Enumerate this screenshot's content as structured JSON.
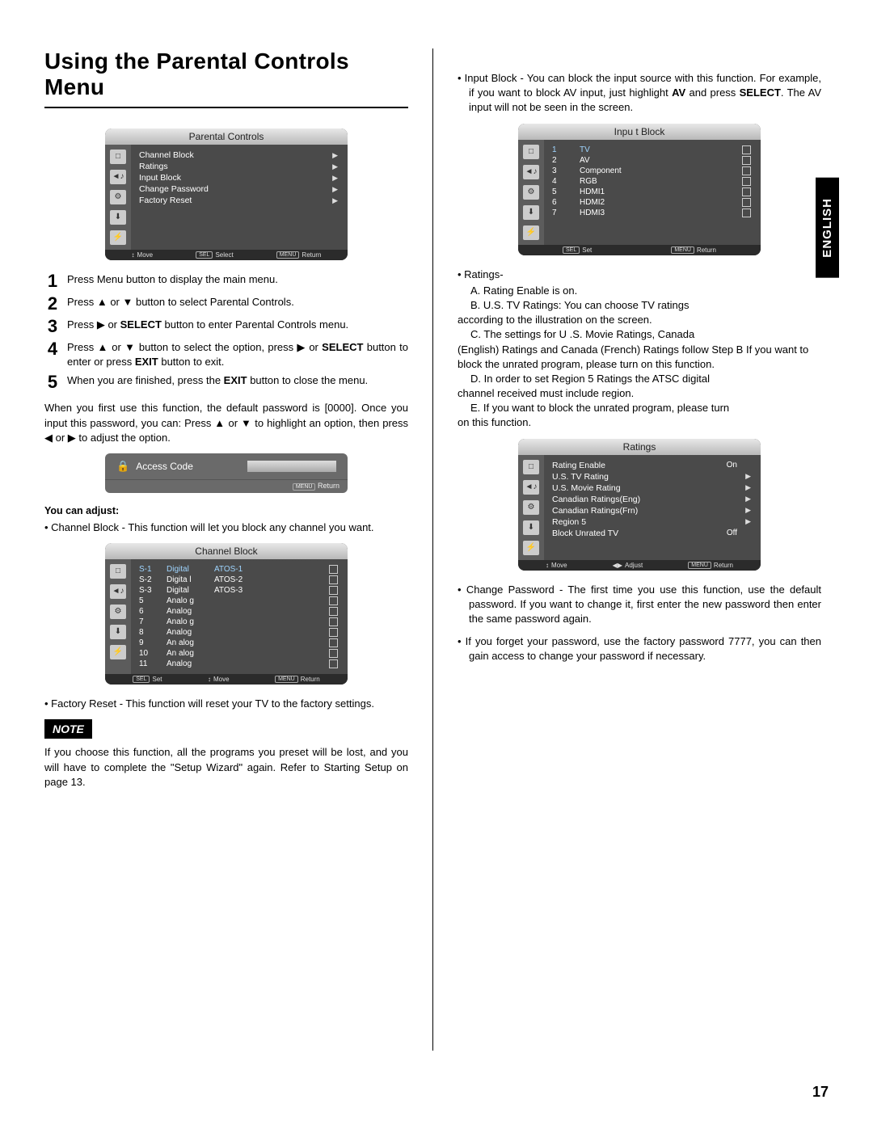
{
  "page_title": "Using the Parental Controls Menu",
  "language_tab": "ENGLISH",
  "page_number": "17",
  "parental_menu": {
    "title": "Parental Controls",
    "items": [
      "Channel Block",
      "Ratings",
      "Input Block",
      "Change Password",
      "Factory Reset"
    ],
    "footer": {
      "move": "Move",
      "select": "Select",
      "return": "Return",
      "sel_badge": "SEL",
      "menu_badge": "MENU",
      "move_icon": "↕"
    }
  },
  "steps": [
    "Press Menu button to display the main menu.",
    "Press ▲ or ▼ button to select Parental Controls.",
    "Press ▶ or <b>SELECT</b> button to enter Parental Controls menu.",
    "Press ▲ or ▼ button to select the option, press ▶ or <b>SELECT</b> button to enter or press <b>EXIT</b> button to exit.",
    "When you are finished, press the <b>EXIT</b> button to close the menu."
  ],
  "first_use_text": "When you first use this function, the default password is [0000]. Once you input this password, you can: Press ▲ or ▼ to highlight an option, then press ◀ or ▶ to adjust the option.",
  "access_code": {
    "label": "Access Code",
    "return": "Return",
    "menu_badge": "MENU"
  },
  "you_can_adjust": "You can adjust:",
  "channel_block_desc": "Channel Block - This function will let you block any channel you want.",
  "channel_block_menu": {
    "title": "Channel  Block",
    "rows": [
      {
        "ch": "S-1",
        "type": "Digital",
        "name": "ATOS-1"
      },
      {
        "ch": "S-2",
        "type": "Digita l",
        "name": "ATOS-2"
      },
      {
        "ch": "S-3",
        "type": "Digital",
        "name": "ATOS-3"
      },
      {
        "ch": "5",
        "type": "Analo g",
        "name": ""
      },
      {
        "ch": "6",
        "type": "Analog",
        "name": ""
      },
      {
        "ch": "7",
        "type": "Analo g",
        "name": ""
      },
      {
        "ch": "8",
        "type": "Analog",
        "name": ""
      },
      {
        "ch": "9",
        "type": "An alog",
        "name": ""
      },
      {
        "ch": "10",
        "type": "An alog",
        "name": ""
      },
      {
        "ch": "11",
        "type": "Analog",
        "name": ""
      }
    ],
    "footer": {
      "set": "Set",
      "move": "Move",
      "return": "Return",
      "sel_badge": "SEL",
      "menu_badge": "MENU",
      "move_icon": "↕"
    }
  },
  "factory_reset_desc": "Factory Reset - This function will reset your TV to the factory settings.",
  "note_label": "NOTE",
  "note_text": "If you choose this function, all the programs you preset will be lost, and you will have to complete the \"Setup Wizard\" again. Refer to Starting Setup on page 13.",
  "input_block_desc": "Input Block - You can block the input source with this function. For example, if you want to block AV input, just highlight <b>AV</b> and press <b>SELECT</b>. The AV input will not be seen in the screen.",
  "input_block_menu": {
    "title": "Inpu t  Block",
    "rows": [
      {
        "n": "1",
        "name": "TV"
      },
      {
        "n": "2",
        "name": "AV"
      },
      {
        "n": "3",
        "name": "Component"
      },
      {
        "n": "4",
        "name": "RGB"
      },
      {
        "n": "5",
        "name": "HDMI1"
      },
      {
        "n": "6",
        "name": "HDMI2"
      },
      {
        "n": "7",
        "name": "HDMI3"
      }
    ],
    "footer": {
      "set": "Set",
      "return": "Return",
      "sel_badge": "SEL",
      "menu_badge": "MENU"
    }
  },
  "ratings_heading": "Ratings-",
  "ratings_letters": {
    "a": "A.  Rating Enable is on.",
    "b": "B.  U.S. TV Ratings: You can choose TV ratings",
    "b2": "according to the illustration on the screen.",
    "c": "C.  The settings for U .S. Movie Ratings, Canada",
    "c2": "(English) Ratings and Canada (French) Ratings follow Step B If you want to block the unrated program, please turn on this function.",
    "d": "D.  In order to set Region 5 Ratings the ATSC digital",
    "d2": "channel received must include region.",
    "e": "E.  If you want to block the unrated program, please turn",
    "e2": "on this function."
  },
  "ratings_menu": {
    "title": "Ratings",
    "rows": [
      {
        "label": "Rating Enable",
        "val": "On",
        "arrow": false
      },
      {
        "label": "U.S. TV Rating",
        "val": "",
        "arrow": true
      },
      {
        "label": "U.S. Movie Rating",
        "val": "",
        "arrow": true
      },
      {
        "label": "Canadian Ratings(Eng)",
        "val": "",
        "arrow": true
      },
      {
        "label": "Canadian Ratings(Frn)",
        "val": "",
        "arrow": true
      },
      {
        "label": "Region 5",
        "val": "",
        "arrow": true
      },
      {
        "label": "Block Unrated TV",
        "val": "Off",
        "arrow": false
      }
    ],
    "footer": {
      "move": "Move",
      "adjust": "Adjust",
      "return": "Return",
      "menu_badge": "MENU",
      "move_icon": "↕",
      "adj_icon": "◀▶"
    }
  },
  "change_pwd_desc": "Change Password - The first time you use this function, use the default password. If you want to change it, first enter the new password then enter the same password again.",
  "forget_pwd_desc": "If you forget your password, use the factory password 7777, you can then gain access to change your password if necessary.",
  "sidebar_icons": [
    "□",
    "◄♪",
    "⚙",
    "⬇",
    "⚡"
  ]
}
